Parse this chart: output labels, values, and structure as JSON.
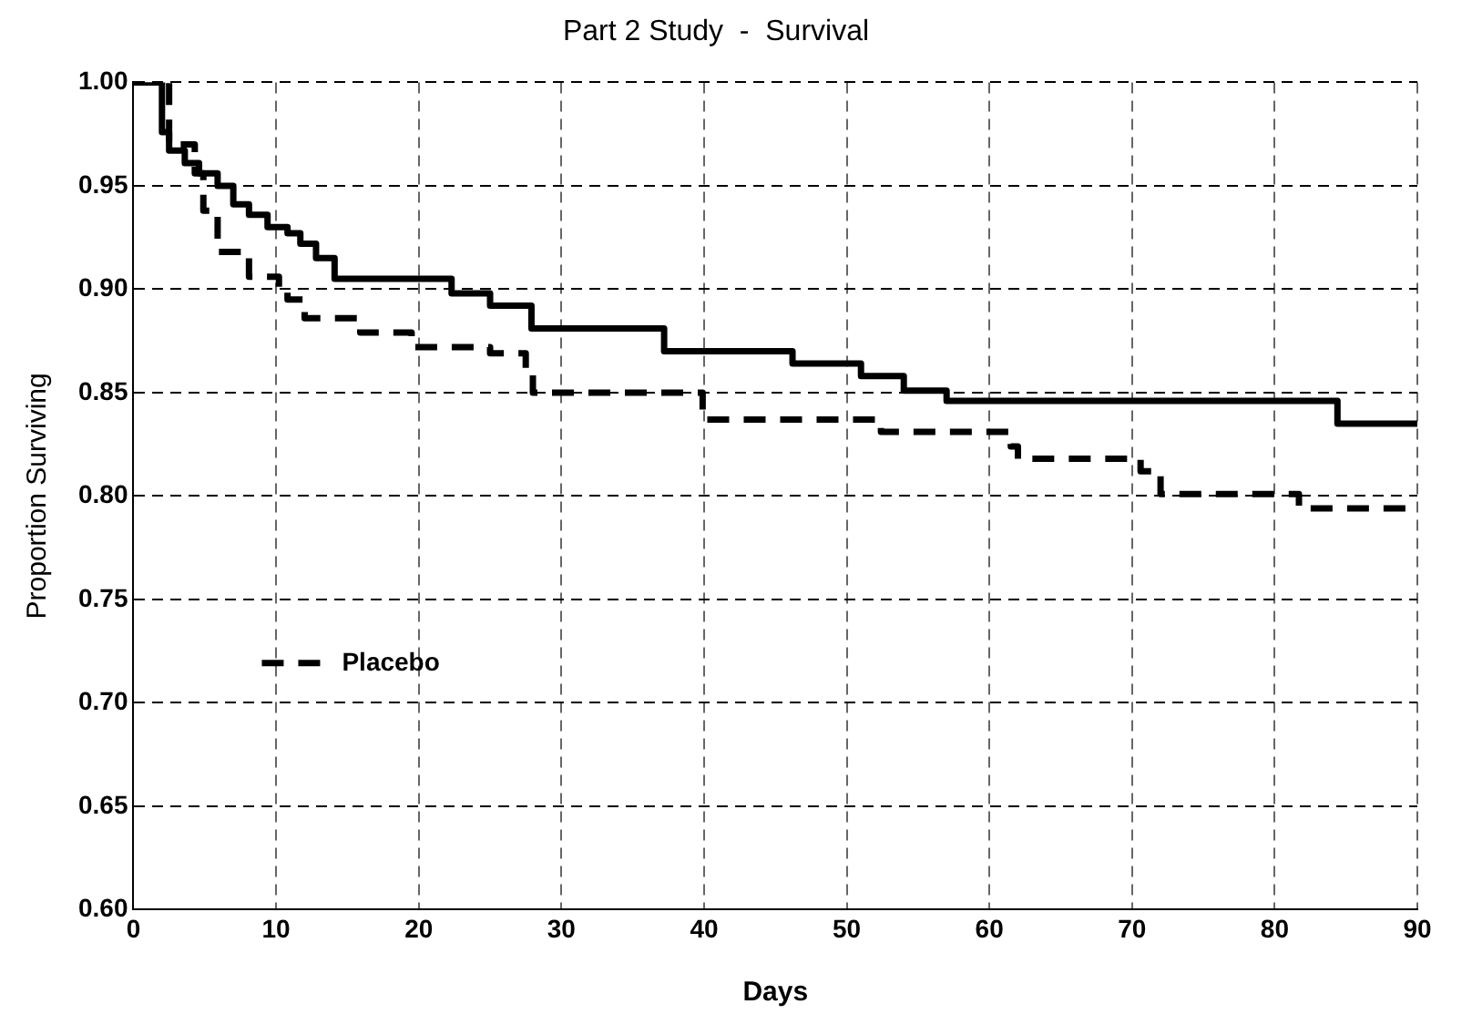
{
  "chart_data": {
    "type": "step",
    "title": "Part 2 Study  -  Survival",
    "xlabel": "Days",
    "ylabel": "Proportion Surviving",
    "xlim": [
      0,
      90
    ],
    "xticks": [
      0,
      10,
      20,
      30,
      40,
      50,
      60,
      70,
      80,
      90
    ],
    "ylim": [
      0.6,
      1.0
    ],
    "yticks": [
      {
        "value": 0.6,
        "label": "0.60"
      },
      0.65,
      {
        "value": 0.7,
        "label": "0.70"
      },
      0.75,
      {
        "value": 0.8,
        "label": "0.80"
      },
      0.85,
      {
        "value": 0.9,
        "label": "0.90"
      },
      0.95,
      {
        "value": 1.0,
        "label": "1.00"
      }
    ],
    "grid": true,
    "legend": "left",
    "marker": "none",
    "series": [
      {
        "color": "#000000",
        "line_style": "solid",
        "x": [
          0,
          2,
          2.5,
          3.6,
          4.6,
          5.9,
          7,
          8.1,
          9.4,
          10.8,
          11.7,
          12.8,
          14.1,
          22.3,
          25,
          27.9,
          37.2,
          46.2,
          51,
          54,
          57,
          84.4,
          90
        ],
        "values": [
          1,
          0.976,
          0.967,
          0.961,
          0.956,
          0.95,
          0.941,
          0.936,
          0.93,
          0.927,
          0.922,
          0.915,
          0.905,
          0.898,
          0.892,
          0.881,
          0.87,
          0.864,
          0.858,
          0.851,
          0.846,
          0.835,
          0.835
        ]
      },
      {
        "name": "Placebo",
        "color": "#000000",
        "line_style": "dashed",
        "x": [
          0,
          2.5,
          4.3,
          4.9,
          5.9,
          8.1,
          10.2,
          10.8,
          12,
          15.9,
          19.5,
          25,
          27.5,
          28,
          39.9,
          52.4,
          61.5,
          62,
          70.6,
          72,
          81.7,
          90
        ],
        "values": [
          1,
          0.97,
          0.956,
          0.938,
          0.918,
          0.906,
          0.901,
          0.895,
          0.886,
          0.879,
          0.872,
          0.869,
          0.86,
          0.85,
          0.837,
          0.831,
          0.824,
          0.818,
          0.812,
          0.801,
          0.794,
          0.794
        ]
      }
    ]
  }
}
